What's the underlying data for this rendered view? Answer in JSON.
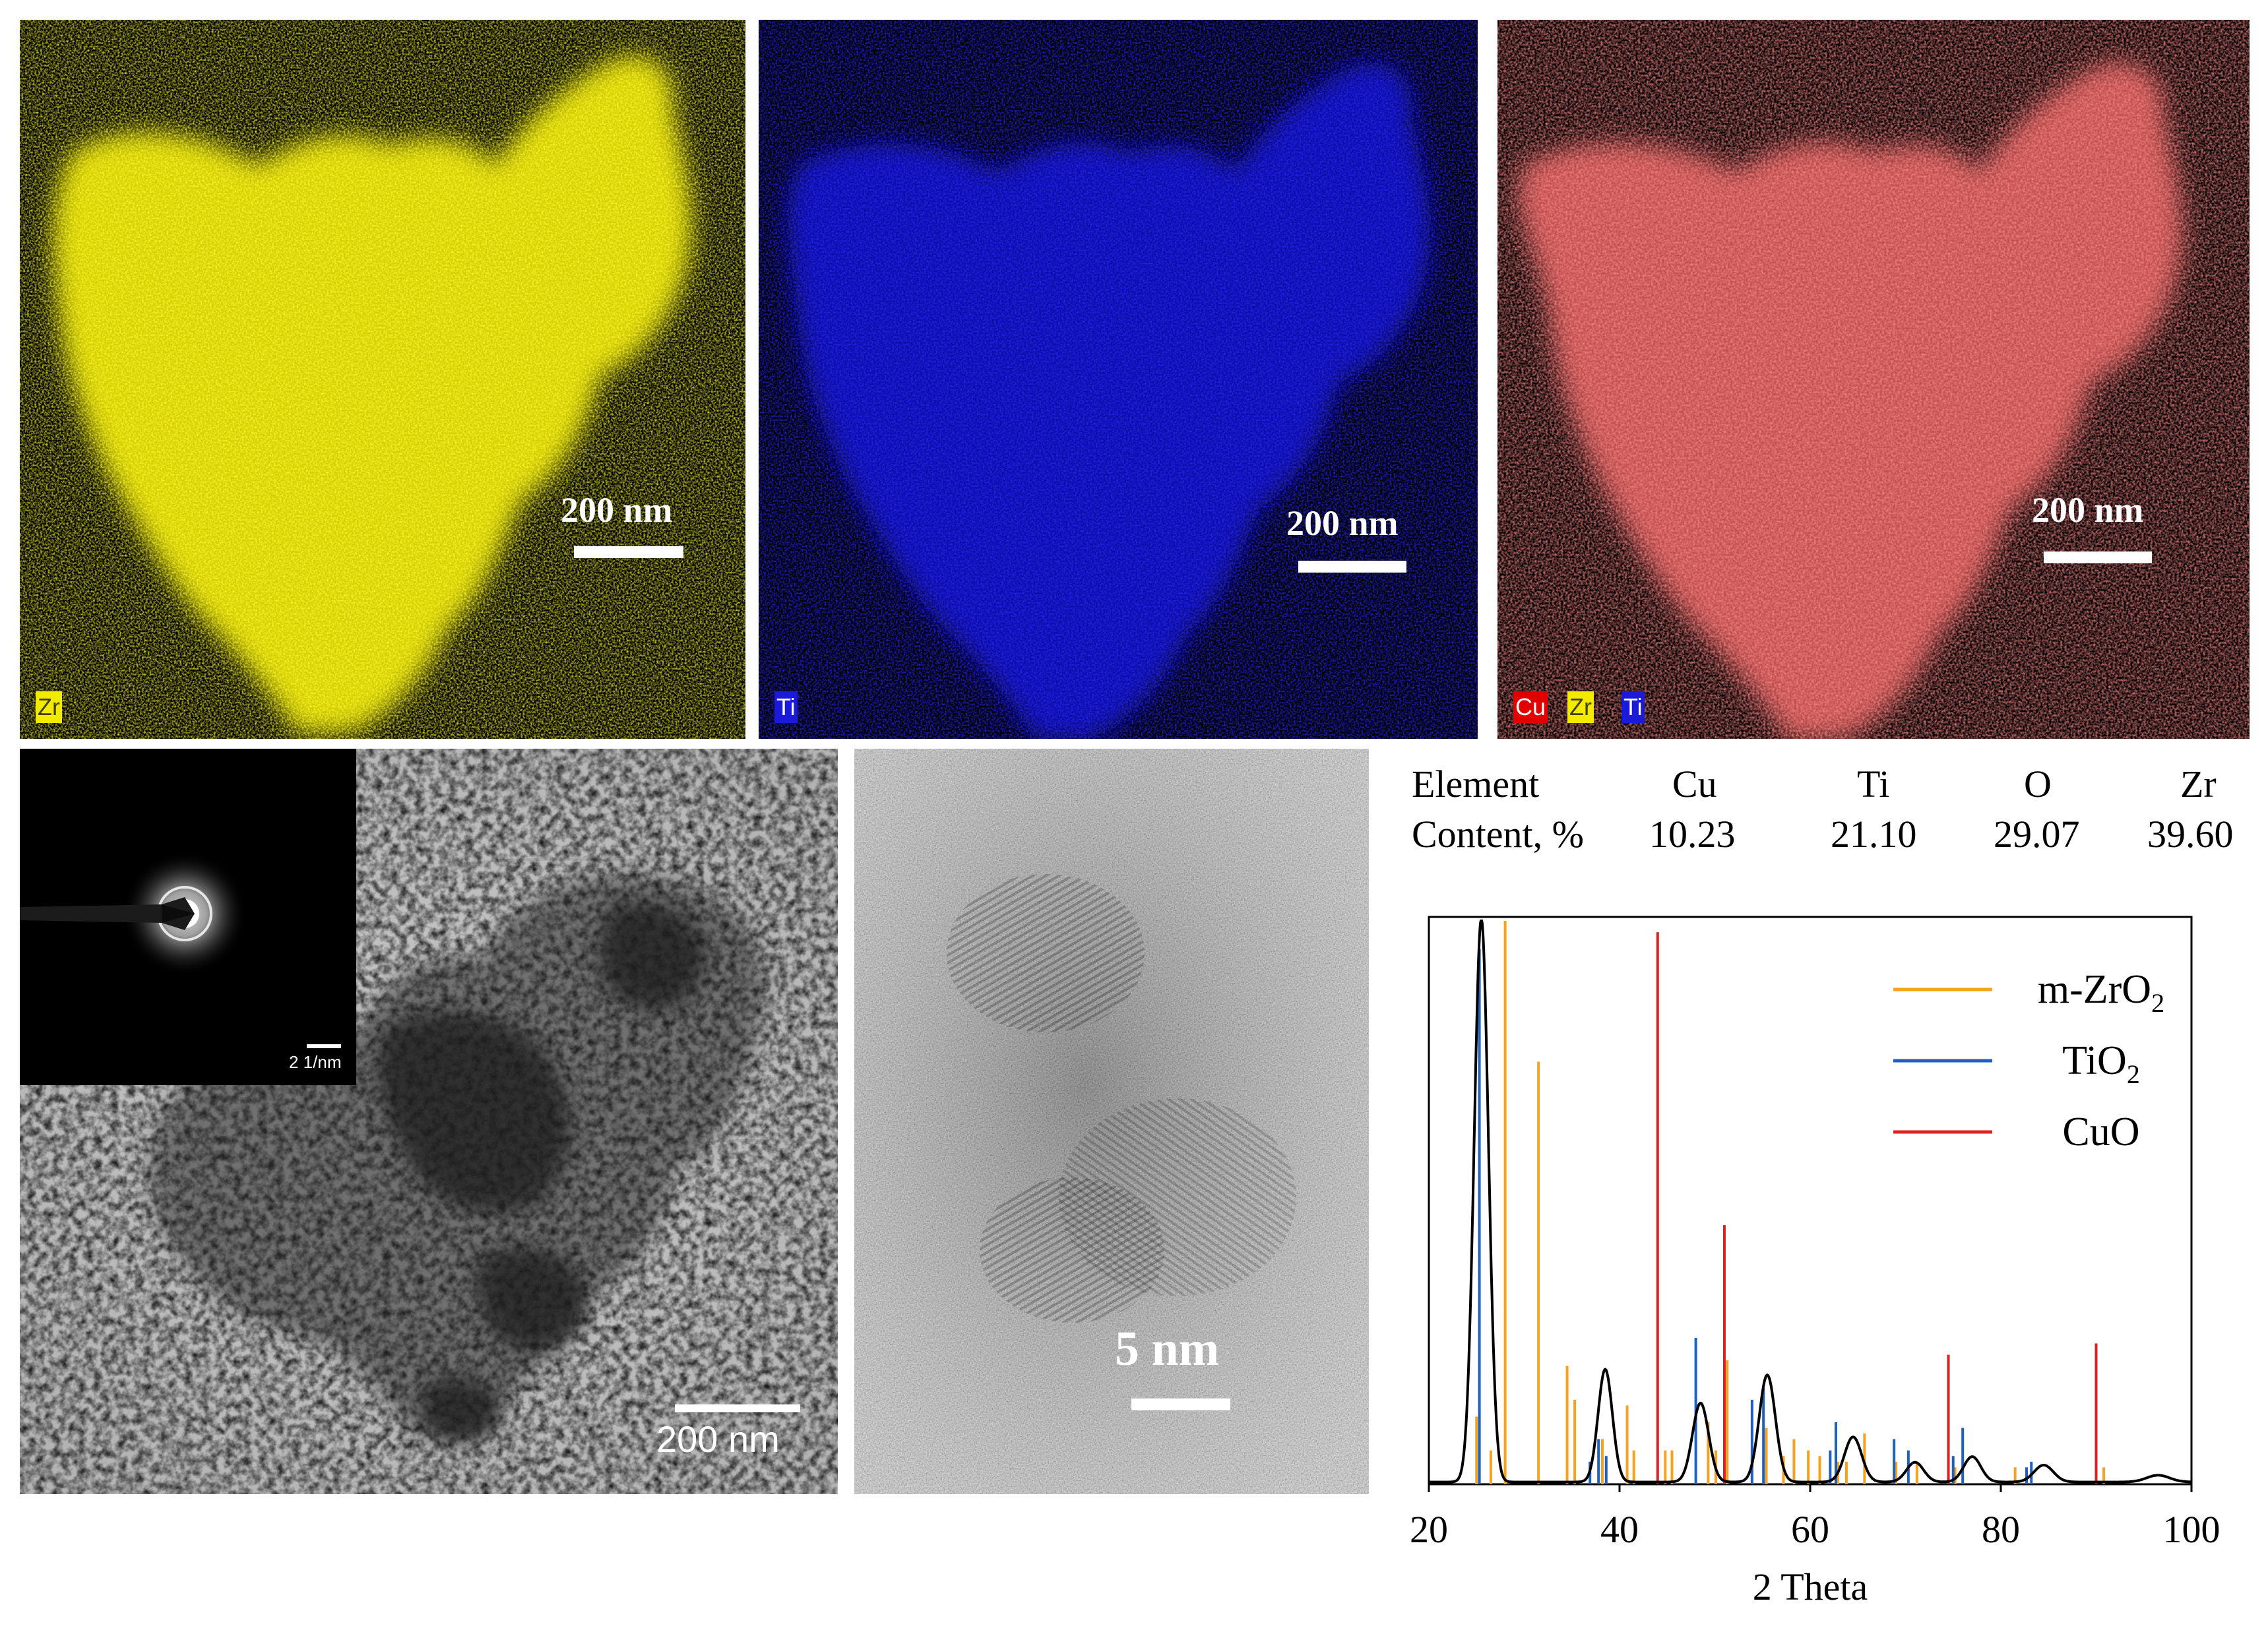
{
  "panels": {
    "zr_map": {
      "scale_label": "200 nm",
      "tags": [
        {
          "text": "Zr",
          "bg": "#f2ea00",
          "fg": "#404000"
        }
      ]
    },
    "ti_map": {
      "scale_label": "200 nm",
      "tags": [
        {
          "text": "Ti",
          "bg": "#1a1ad8",
          "fg": "#ffffff"
        }
      ]
    },
    "overlay_map": {
      "scale_label": "200 nm",
      "tags": [
        {
          "text": "Cu",
          "bg": "#e00000",
          "fg": "#ffffff"
        },
        {
          "text": "Zr",
          "bg": "#f2ea00",
          "fg": "#404000"
        },
        {
          "text": "Ti",
          "bg": "#1a1ad8",
          "fg": "#ffffff"
        }
      ]
    },
    "tem": {
      "scale_label": "200 nm",
      "inset_scale_label": "2 1/nm"
    },
    "hrtem": {
      "scale_label": "5 nm"
    }
  },
  "composition_table": {
    "header": [
      "Element",
      "Cu",
      "Ti",
      "O",
      "Zr"
    ],
    "row": [
      "Content, %",
      "10.23",
      "21.10",
      "29.07",
      "39.60"
    ]
  },
  "colors": {
    "zr": "#f2ea00",
    "ti": "#1a1ad8",
    "cu": "#e00000",
    "overlay": "#f07070",
    "mzro2": "#f5a31f",
    "tio2": "#1f5fbf",
    "cuo": "#e02020"
  },
  "chart_data": {
    "type": "line",
    "xlabel": "2 Theta",
    "ylabel": "",
    "xlim": [
      20,
      100
    ],
    "xticks": [
      20,
      40,
      60,
      80,
      100
    ],
    "ylim": [
      0,
      100
    ],
    "legend_position": "top-right",
    "legend": [
      {
        "name": "m-ZrO₂",
        "base": "m-ZrO",
        "sub": "2",
        "color": "#f5a31f"
      },
      {
        "name": "TiO₂",
        "base": "TiO",
        "sub": "2",
        "color": "#1f5fbf"
      },
      {
        "name": "CuO",
        "base": "CuO",
        "sub": "",
        "color": "#e02020"
      }
    ],
    "measured_pattern": {
      "name": "",
      "color": "#000000",
      "peaks": [
        {
          "x": 25.5,
          "height": 100,
          "width": 0.75
        },
        {
          "x": 38.5,
          "height": 20,
          "width": 0.75
        },
        {
          "x": 48.5,
          "height": 14,
          "width": 0.85
        },
        {
          "x": 55.5,
          "height": 19,
          "width": 0.85
        },
        {
          "x": 64.5,
          "height": 8,
          "width": 0.9
        },
        {
          "x": 71.0,
          "height": 3.5,
          "width": 0.9
        },
        {
          "x": 77.0,
          "height": 4.5,
          "width": 0.9
        },
        {
          "x": 84.5,
          "height": 3,
          "width": 1.0
        },
        {
          "x": 96.5,
          "height": 1.2,
          "width": 1.2
        }
      ]
    },
    "reference_lines": [
      {
        "series": "m-ZrO2",
        "x": [
          25.0,
          26.5,
          28.0,
          31.5,
          34.5,
          35.3,
          38.2,
          40.8,
          41.5,
          44.8,
          45.5,
          49.3,
          50.1,
          51.3,
          53.9,
          55.4,
          57.2,
          58.3,
          59.8,
          61.0,
          62.9,
          63.8,
          65.7,
          69.0,
          71.2,
          75.2,
          81.5,
          90.0,
          90.8
        ],
        "y": [
          12,
          6,
          100,
          75,
          21,
          15,
          8,
          14,
          6,
          6,
          6,
          11,
          6,
          22,
          5,
          10,
          5,
          8,
          6,
          5,
          4,
          4,
          9,
          4,
          4,
          3,
          3,
          3,
          3
        ]
      },
      {
        "series": "TiO2",
        "x": [
          25.3,
          36.9,
          37.8,
          38.6,
          48.0,
          53.9,
          55.1,
          62.1,
          62.7,
          68.8,
          70.3,
          75.0,
          76.0,
          82.7,
          83.2
        ],
        "y": [
          95,
          4,
          8,
          5,
          26,
          15,
          17,
          6,
          11,
          8,
          6,
          5,
          10,
          3,
          4
        ]
      },
      {
        "series": "CuO",
        "x": [
          44.0,
          51.0,
          74.5,
          90.0
        ],
        "y": [
          98,
          46,
          23,
          25
        ]
      }
    ]
  }
}
